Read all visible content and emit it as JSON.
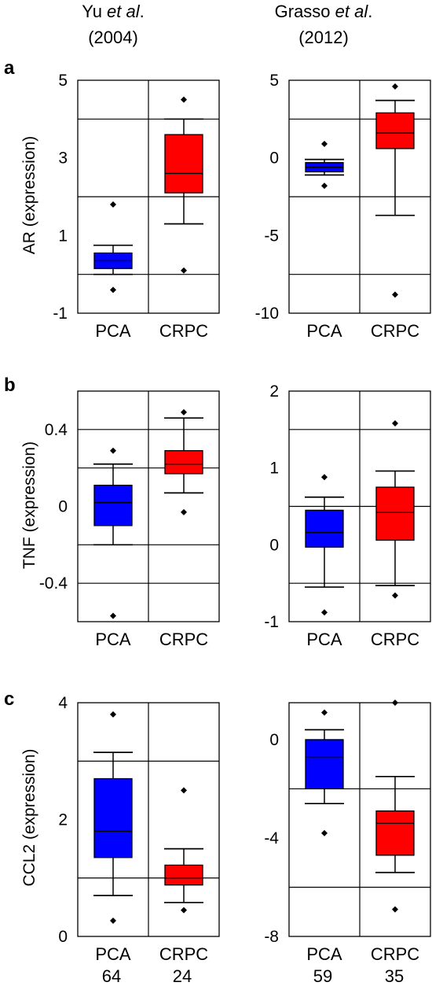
{
  "headers": {
    "col1": {
      "author": "Yu ",
      "etal": "et al",
      "dot": ".",
      "year": "(2004)"
    },
    "col2": {
      "author": "Grasso ",
      "etal": "et al",
      "dot": ".",
      "year": "(2012)"
    }
  },
  "panels": [
    {
      "letter": "a",
      "ylabel": "AR (expression)"
    },
    {
      "letter": "b",
      "ylabel": "TNF (expression)"
    },
    {
      "letter": "c",
      "ylabel": "CCL2 (expression)"
    }
  ],
  "counts": {
    "col1": [
      "64",
      "24"
    ],
    "col2": [
      "59",
      "35"
    ]
  },
  "colors": {
    "PCA": "#0000ff",
    "CRPC": "#ff0000"
  },
  "chart_data": [
    {
      "type": "box",
      "panel": "a",
      "column": "Yu et al. (2004)",
      "ylabel": "AR (expression)",
      "categories": [
        "PCA",
        "CRPC"
      ],
      "ylim": [
        -1,
        5
      ],
      "yticks": [
        -1,
        1,
        3,
        5
      ],
      "gridlines": [
        0,
        2,
        4
      ],
      "boxes": [
        {
          "name": "PCA",
          "whisker_low": 0.0,
          "q1": 0.15,
          "median": 0.35,
          "q3": 0.55,
          "whisker_high": 0.75,
          "outliers": [
            1.8,
            -0.4
          ]
        },
        {
          "name": "CRPC",
          "whisker_low": 1.3,
          "q1": 2.1,
          "median": 2.6,
          "q3": 3.6,
          "whisker_high": 4.0,
          "outliers": [
            4.5,
            0.1
          ]
        }
      ]
    },
    {
      "type": "box",
      "panel": "a",
      "column": "Grasso et al. (2012)",
      "ylabel": "",
      "categories": [
        "PCA",
        "CRPC"
      ],
      "ylim": [
        -10,
        5
      ],
      "yticks": [
        -10,
        -5,
        0,
        5
      ],
      "gridlines": [
        -7.5,
        -2.5,
        2.5
      ],
      "boxes": [
        {
          "name": "PCA",
          "whisker_low": -1.1,
          "q1": -0.9,
          "median": -0.6,
          "q3": -0.3,
          "whisker_high": -0.1,
          "outliers": [
            0.9,
            -1.8
          ]
        },
        {
          "name": "CRPC",
          "whisker_low": -3.7,
          "q1": 0.6,
          "median": 1.6,
          "q3": 2.9,
          "whisker_high": 3.7,
          "outliers": [
            4.6,
            -8.8
          ]
        }
      ]
    },
    {
      "type": "box",
      "panel": "b",
      "column": "Yu et al. (2004)",
      "ylabel": "TNF (expression)",
      "categories": [
        "PCA",
        "CRPC"
      ],
      "ylim": [
        -0.6,
        0.6
      ],
      "yticks": [
        -0.4,
        0,
        0.4
      ],
      "gridlines": [
        -0.4,
        -0.2,
        0.2,
        0.4
      ],
      "boxes": [
        {
          "name": "PCA",
          "whisker_low": -0.2,
          "q1": -0.1,
          "median": 0.02,
          "q3": 0.11,
          "whisker_high": 0.22,
          "outliers": [
            0.29,
            -0.57
          ]
        },
        {
          "name": "CRPC",
          "whisker_low": 0.07,
          "q1": 0.17,
          "median": 0.22,
          "q3": 0.29,
          "whisker_high": 0.46,
          "outliers": [
            0.49,
            -0.03
          ]
        }
      ]
    },
    {
      "type": "box",
      "panel": "b",
      "column": "Grasso et al. (2012)",
      "ylabel": "",
      "categories": [
        "PCA",
        "CRPC"
      ],
      "ylim": [
        -1,
        2
      ],
      "yticks": [
        -1,
        0,
        1,
        2
      ],
      "gridlines": [
        -0.5,
        0.5,
        1.5
      ],
      "boxes": [
        {
          "name": "PCA",
          "whisker_low": -0.55,
          "q1": -0.03,
          "median": 0.16,
          "q3": 0.45,
          "whisker_high": 0.62,
          "outliers": [
            0.88,
            -0.88
          ]
        },
        {
          "name": "CRPC",
          "whisker_low": -0.53,
          "q1": 0.06,
          "median": 0.42,
          "q3": 0.75,
          "whisker_high": 0.96,
          "outliers": [
            1.58,
            -0.66
          ]
        }
      ]
    },
    {
      "type": "box",
      "panel": "c",
      "column": "Yu et al. (2004)",
      "ylabel": "CCL2 (expression)",
      "categories": [
        "PCA",
        "CRPC"
      ],
      "ylim": [
        0,
        4
      ],
      "yticks": [
        0,
        2,
        4
      ],
      "gridlines": [
        1,
        3
      ],
      "boxes": [
        {
          "name": "PCA",
          "whisker_low": 0.7,
          "q1": 1.35,
          "median": 1.8,
          "q3": 2.7,
          "whisker_high": 3.15,
          "outliers": [
            3.8,
            0.27
          ]
        },
        {
          "name": "CRPC",
          "whisker_low": 0.58,
          "q1": 0.88,
          "median": 1.0,
          "q3": 1.22,
          "whisker_high": 1.5,
          "outliers": [
            2.5,
            0.45
          ]
        }
      ]
    },
    {
      "type": "box",
      "panel": "c",
      "column": "Grasso et al. (2012)",
      "ylabel": "",
      "categories": [
        "PCA",
        "CRPC"
      ],
      "ylim": [
        -8,
        1.5
      ],
      "yticks": [
        -8,
        -4,
        0
      ],
      "gridlines": [
        -6,
        -2
      ],
      "boxes": [
        {
          "name": "PCA",
          "whisker_low": -2.6,
          "q1": -2.0,
          "median": -0.7,
          "q3": 0.0,
          "whisker_high": 0.4,
          "outliers": [
            1.1,
            -3.8
          ]
        },
        {
          "name": "CRPC",
          "whisker_low": -5.4,
          "q1": -4.7,
          "median": -3.4,
          "q3": -2.9,
          "whisker_high": -1.5,
          "outliers": [
            1.5,
            -6.9
          ]
        }
      ]
    }
  ]
}
